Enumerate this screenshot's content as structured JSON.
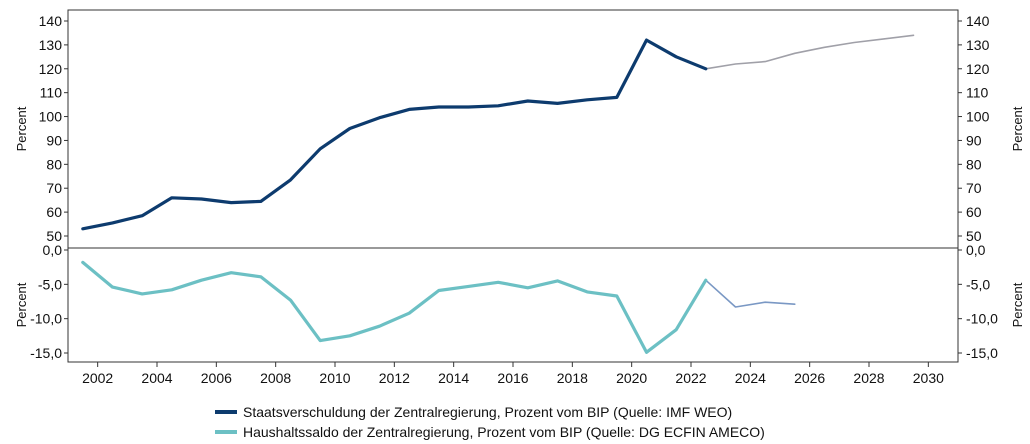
{
  "colors": {
    "debt": "#0d3b6e",
    "debt_forecast": "#a0a0a8",
    "balance": "#6cc0c4",
    "balance_forecast": "#7a98c4",
    "axis": "#333333"
  },
  "chart_data": [
    {
      "type": "line",
      "ylabel": "Percent",
      "ylabel_right": "Percent",
      "ylim": [
        50,
        140
      ],
      "yticks": [
        50,
        60,
        70,
        80,
        90,
        100,
        110,
        120,
        130,
        140
      ],
      "xlim": [
        2001,
        2031
      ],
      "series": [
        {
          "name": "Staatsverschuldung der Zentralregierung, Prozent vom BIP (Quelle: IMF WEO)",
          "x": [
            2001.5,
            2002.5,
            2003.5,
            2004.5,
            2005.5,
            2006.5,
            2007.5,
            2008.5,
            2009.5,
            2010.5,
            2011.5,
            2012.5,
            2013.5,
            2014.5,
            2015.5,
            2016.5,
            2017.5,
            2018.5,
            2019.5,
            2020.5,
            2021.5,
            2022.5
          ],
          "values": [
            53,
            55.5,
            58.5,
            66,
            65.5,
            64,
            64.5,
            73.5,
            86.5,
            95,
            99.5,
            103,
            104,
            104,
            104.5,
            106.5,
            105.5,
            107,
            108,
            132,
            125,
            120
          ]
        },
        {
          "x": [
            2022.5,
            2023.5,
            2024.5,
            2025.5,
            2026.5,
            2027.5,
            2028.5,
            2029.5
          ],
          "values": [
            120,
            122,
            123,
            126.5,
            129,
            131,
            132.5,
            134
          ]
        }
      ]
    },
    {
      "type": "line",
      "ylabel": "Percent",
      "ylabel_right": "Percent",
      "ylim": [
        -16,
        0
      ],
      "yticks": [
        0,
        -5,
        -10,
        -15
      ],
      "ytick_labels": [
        "0,0",
        "-5,0",
        "-10,0",
        "-15,0"
      ],
      "xlim": [
        2001,
        2031
      ],
      "xticks": [
        2002,
        2004,
        2006,
        2008,
        2010,
        2012,
        2014,
        2016,
        2018,
        2020,
        2022,
        2024,
        2026,
        2028,
        2030
      ],
      "series": [
        {
          "name": "Haushaltssaldo der Zentralregierung, Prozent vom BIP (Quelle: DG ECFIN AMECO)",
          "x": [
            2001.5,
            2002.5,
            2003.5,
            2004.5,
            2005.5,
            2006.5,
            2007.5,
            2008.5,
            2009.5,
            2010.5,
            2011.5,
            2012.5,
            2013.5,
            2014.5,
            2015.5,
            2016.5,
            2017.5,
            2018.5,
            2019.5,
            2020.5,
            2021.5,
            2022.5
          ],
          "values": [
            -1.8,
            -5.4,
            -6.4,
            -5.8,
            -4.4,
            -3.3,
            -3.9,
            -7.3,
            -13.2,
            -12.5,
            -11.1,
            -9.2,
            -5.9,
            -5.3,
            -4.7,
            -5.5,
            -4.5,
            -6.1,
            -6.7,
            -14.9,
            -11.6,
            -4.4
          ]
        },
        {
          "x": [
            2022.5,
            2023.5,
            2024.5,
            2025.5
          ],
          "values": [
            -4.4,
            -8.3,
            -7.6,
            -7.9
          ]
        }
      ]
    }
  ]
}
